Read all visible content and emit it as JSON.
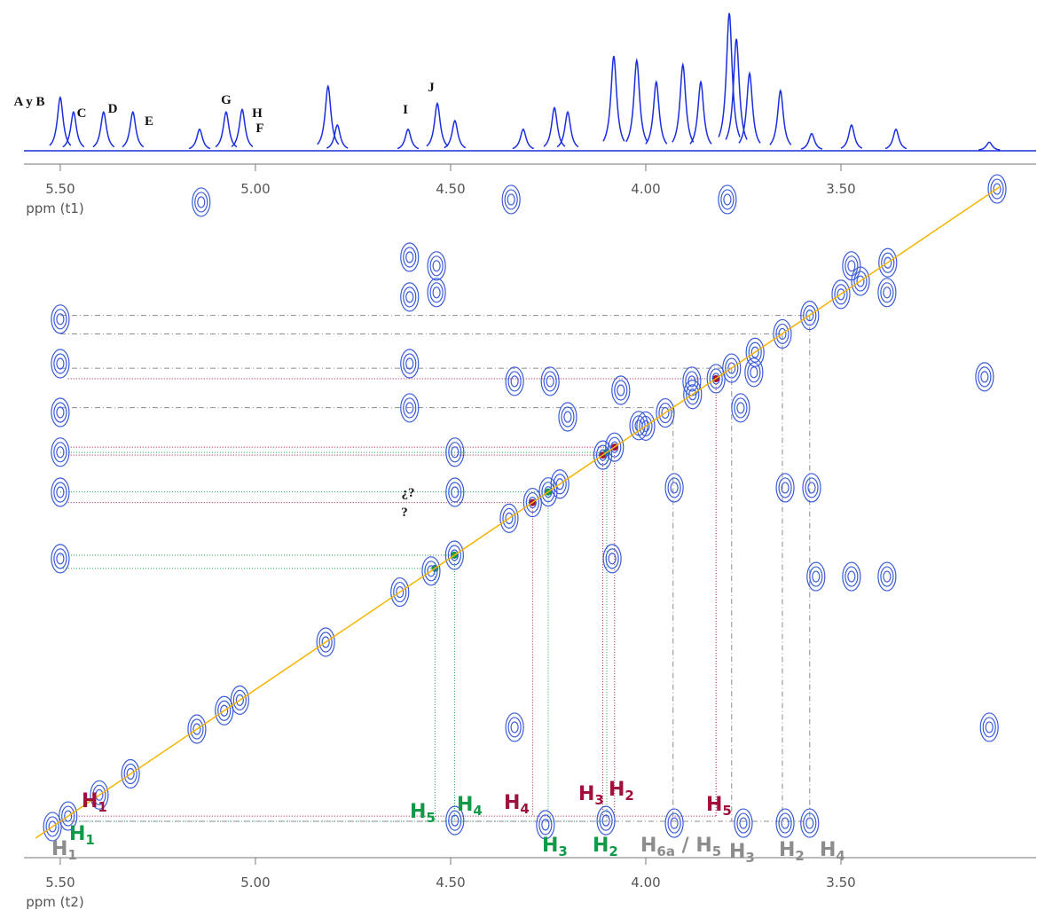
{
  "chart_data": {
    "type": "cosy",
    "x_top_label": "ppm (t1)",
    "x_label": "ppm (t2)",
    "xlim": [
      5.593,
      3.0
    ],
    "ylim": [
      5.638,
      3.056
    ],
    "xticks": [
      {
        "value": 5.5,
        "label": "5.50"
      },
      {
        "value": 5.0,
        "label": "5.00"
      },
      {
        "value": 4.5,
        "label": "4.50"
      },
      {
        "value": 4.0,
        "label": "4.00"
      },
      {
        "value": 3.5,
        "label": "3.50"
      }
    ],
    "spectrum": {
      "ylim": [
        0,
        170
      ],
      "x": [
        5.5,
        5.466,
        5.389,
        5.314,
        5.143,
        5.075,
        5.034,
        4.814,
        4.79,
        4.609,
        4.534,
        4.489,
        4.314,
        4.234,
        4.2,
        4.082,
        4.023,
        3.973,
        3.905,
        3.859,
        3.786,
        3.768,
        3.734,
        3.655,
        3.575,
        3.473,
        3.359,
        3.12
      ],
      "values": [
        62,
        45,
        45,
        45,
        25,
        45,
        48,
        75,
        30,
        25,
        55,
        35,
        25,
        50,
        45,
        110,
        105,
        80,
        100,
        80,
        160,
        130,
        90,
        70,
        20,
        30,
        25,
        10
      ]
    },
    "peak_labels": [
      "A y B",
      "C",
      "D",
      "E",
      "G",
      "H",
      "F",
      "I",
      "J"
    ],
    "unknown_labels": [
      "¿?",
      "?"
    ],
    "contours": {
      "x": [
        5.5,
        5.5,
        5.5,
        5.5,
        5.5,
        5.5,
        4.605,
        4.605,
        4.536,
        4.536,
        4.605,
        4.605,
        4.489,
        4.489,
        3.132,
        5.139,
        4.345,
        3.791,
        3.473,
        3.382,
        3.473,
        3.382,
        3.564,
        3.927,
        3.643,
        3.575,
        3.757,
        4.086,
        4.257,
        4.102,
        3.927,
        3.75,
        3.643,
        3.58,
        4.489,
        4.336,
        3.12,
        3.882,
        4.064,
        3.723,
        4.245,
        4.336,
        4.2,
        4.018,
        5.52,
        5.48,
        5.4,
        5.32,
        5.15,
        5.08,
        5.04,
        4.82,
        4.63,
        4.55,
        4.49,
        4.35,
        4.29,
        4.25,
        4.22,
        4.11,
        4.08,
        4.0,
        3.95,
        3.88,
        3.82,
        3.78,
        3.72,
        3.65,
        3.58,
        3.5,
        3.45,
        3.38,
        3.1
      ],
      "y": [
        3.594,
        3.763,
        3.948,
        4.099,
        4.251,
        4.503,
        3.359,
        3.51,
        3.392,
        3.493,
        3.763,
        3.931,
        4.099,
        4.251,
        3.813,
        3.15,
        3.14,
        3.14,
        3.392,
        3.493,
        4.571,
        4.571,
        4.571,
        4.234,
        4.234,
        4.234,
        3.931,
        4.503,
        5.513,
        5.497,
        5.507,
        5.507,
        5.507,
        5.507,
        5.497,
        5.143,
        5.143,
        3.83,
        3.864,
        3.796,
        3.83,
        3.83,
        3.965,
        3.998,
        5.52,
        5.48,
        5.4,
        5.32,
        5.15,
        5.08,
        5.04,
        4.82,
        4.63,
        4.55,
        4.49,
        4.35,
        4.29,
        4.25,
        4.22,
        4.11,
        4.08,
        4.0,
        3.95,
        3.88,
        3.82,
        3.78,
        3.72,
        3.65,
        3.58,
        3.5,
        3.45,
        3.38,
        3.1
      ]
    },
    "systems": [
      {
        "color": "#a0103a",
        "labels": [
          [
            "H",
            "1"
          ],
          [
            "H",
            "2"
          ],
          [
            "H",
            "3"
          ],
          [
            "H",
            "4"
          ],
          [
            "H",
            "5"
          ]
        ],
        "shifts": [
          5.48,
          4.08,
          4.11,
          4.29,
          3.82
        ]
      },
      {
        "color": "#109a48",
        "labels": [
          [
            "H",
            "1"
          ],
          [
            "H",
            "2"
          ],
          [
            "H",
            "3"
          ],
          [
            "H",
            "4"
          ],
          [
            "H",
            "5"
          ]
        ],
        "shifts": [
          5.5,
          4.1,
          4.25,
          4.49,
          4.54
        ]
      },
      {
        "color": "#8c8c8c",
        "labels": [
          [
            "H",
            "1"
          ],
          [
            "H",
            "6a",
            " / H",
            "5"
          ],
          [
            "H",
            "3"
          ],
          [
            "H",
            "2"
          ],
          [
            "H",
            "4"
          ]
        ],
        "shifts": [
          5.5,
          3.93,
          3.78,
          3.65,
          3.58
        ]
      }
    ]
  }
}
